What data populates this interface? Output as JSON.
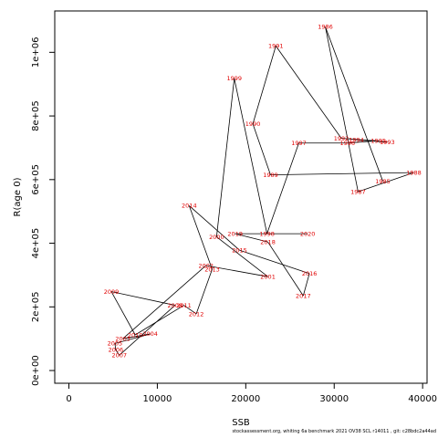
{
  "chart_data": {
    "type": "scatter",
    "xlabel": "SSB",
    "ylabel": "R(age 0)",
    "xlim": [
      -1600,
      40500
    ],
    "ylim": [
      -40000,
      1130000
    ],
    "x_ticks": [
      0,
      10000,
      20000,
      30000,
      40000
    ],
    "x_tick_labels": [
      "0",
      "10000",
      "20000",
      "30000",
      "40000"
    ],
    "y_ticks": [
      0,
      200000,
      400000,
      600000,
      800000,
      1000000
    ],
    "y_tick_labels": [
      "0e+00",
      "2e+05",
      "4e+05",
      "6e+05",
      "8e+05",
      "1e+06"
    ],
    "grid": false,
    "line_color": "#000000",
    "label_color": "#e00000",
    "points": [
      {
        "year": "1985",
        "x": 35500,
        "y": 595000
      },
      {
        "year": "1986",
        "x": 29000,
        "y": 1080000
      },
      {
        "year": "1987",
        "x": 32700,
        "y": 562000
      },
      {
        "year": "1988",
        "x": 39000,
        "y": 622000
      },
      {
        "year": "1989",
        "x": 22800,
        "y": 615000
      },
      {
        "year": "1990",
        "x": 20800,
        "y": 775000
      },
      {
        "year": "1991",
        "x": 23400,
        "y": 1020000
      },
      {
        "year": "1992",
        "x": 30800,
        "y": 730000
      },
      {
        "year": "1993",
        "x": 36000,
        "y": 718000
      },
      {
        "year": "1994",
        "x": 32500,
        "y": 725000
      },
      {
        "year": "1995",
        "x": 35000,
        "y": 722000
      },
      {
        "year": "1996",
        "x": 31500,
        "y": 715000
      },
      {
        "year": "1997",
        "x": 26000,
        "y": 715000
      },
      {
        "year": "1998",
        "x": 22400,
        "y": 430000
      },
      {
        "year": "1999",
        "x": 18700,
        "y": 918000
      },
      {
        "year": "2000",
        "x": 16700,
        "y": 420000
      },
      {
        "year": "2001",
        "x": 22500,
        "y": 295000
      },
      {
        "year": "2002",
        "x": 15500,
        "y": 330000
      },
      {
        "year": "2003",
        "x": 6100,
        "y": 100000
      },
      {
        "year": "2004",
        "x": 9200,
        "y": 115000
      },
      {
        "year": "2005",
        "x": 5200,
        "y": 85000
      },
      {
        "year": "2006",
        "x": 5300,
        "y": 65000
      },
      {
        "year": "2007",
        "x": 5700,
        "y": 48000
      },
      {
        "year": "2008",
        "x": 12000,
        "y": 205000
      },
      {
        "year": "2009",
        "x": 4800,
        "y": 248000
      },
      {
        "year": "2010",
        "x": 7500,
        "y": 112000
      },
      {
        "year": "2011",
        "x": 13000,
        "y": 205000
      },
      {
        "year": "2012",
        "x": 14400,
        "y": 178000
      },
      {
        "year": "2013",
        "x": 16200,
        "y": 318000
      },
      {
        "year": "2014",
        "x": 13600,
        "y": 518000
      },
      {
        "year": "2015",
        "x": 19300,
        "y": 378000
      },
      {
        "year": "2016",
        "x": 27200,
        "y": 305000
      },
      {
        "year": "2017",
        "x": 26500,
        "y": 235000
      },
      {
        "year": "2018",
        "x": 22500,
        "y": 404000
      },
      {
        "year": "2019",
        "x": 18800,
        "y": 430000
      },
      {
        "year": "2020",
        "x": 27000,
        "y": 430000
      }
    ]
  },
  "footer_text": "stockassessment.org,  whiting  6a  benchmark  2021  OV38    SCL  r14011  ,  git:  c28bdc2a44ad"
}
